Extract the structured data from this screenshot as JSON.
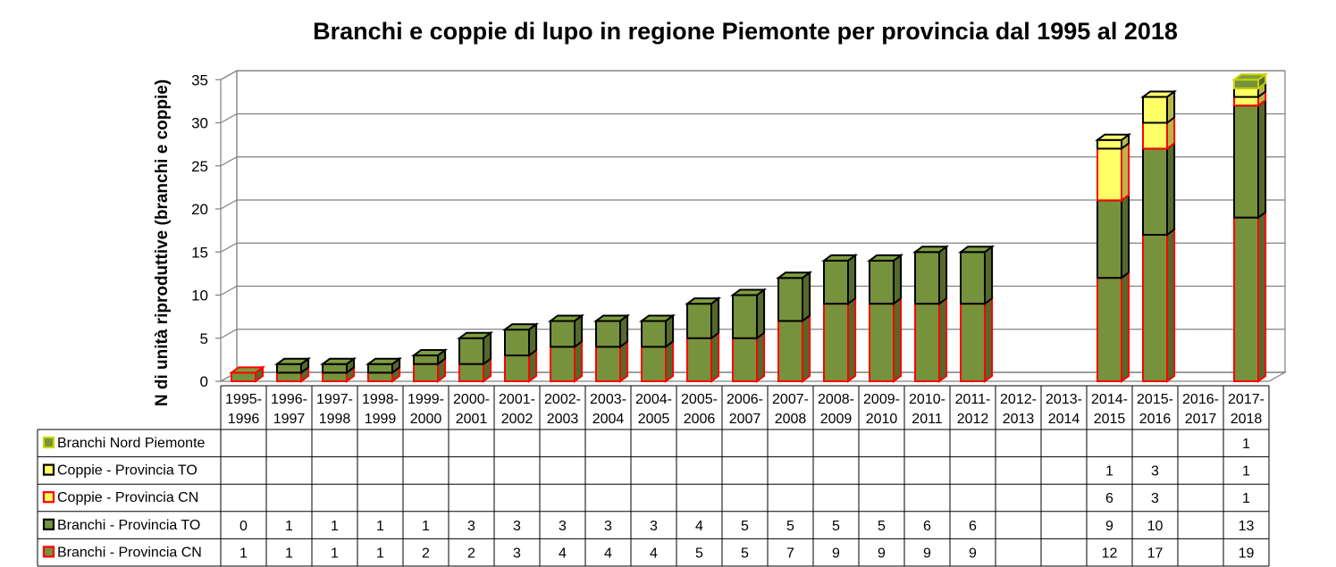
{
  "chart_data": {
    "type": "bar",
    "stacked": true,
    "three_d": true,
    "title": "Branchi e coppie di lupo in regione Piemonte per provincia dal 1995 al 2018",
    "ylabel": "N di unità riproduttive (branchi e coppie)",
    "ylim": [
      0,
      35
    ],
    "yticks": [
      "0",
      "5",
      "10",
      "15",
      "20",
      "25",
      "30",
      "35"
    ],
    "grid": true,
    "legend": "data-table-below",
    "categories": [
      [
        "1995-",
        "1996"
      ],
      [
        "1996-",
        "1997"
      ],
      [
        "1997-",
        "1998"
      ],
      [
        "1998-",
        "1999"
      ],
      [
        "1999-",
        "2000"
      ],
      [
        "2000-",
        "2001"
      ],
      [
        "2001-",
        "2002"
      ],
      [
        "2002-",
        "2003"
      ],
      [
        "2003-",
        "2004"
      ],
      [
        "2004-",
        "2005"
      ],
      [
        "2005-",
        "2006"
      ],
      [
        "2006-",
        "2007"
      ],
      [
        "2007-",
        "2008"
      ],
      [
        "2008-",
        "2009"
      ],
      [
        "2009-",
        "2010"
      ],
      [
        "2010-",
        "2011"
      ],
      [
        "2011-",
        "2012"
      ],
      [
        "2012-",
        "2013"
      ],
      [
        "2013-",
        "2014"
      ],
      [
        "2014-",
        "2015"
      ],
      [
        "2015-",
        "2016"
      ],
      [
        "2016-",
        "2017"
      ],
      [
        "2017-",
        "2018"
      ]
    ],
    "series": [
      {
        "name": "Branchi - Provincia CN",
        "fill": "#76923c",
        "stroke": "#ff0000",
        "values": [
          1,
          1,
          1,
          1,
          2,
          2,
          3,
          4,
          4,
          4,
          5,
          5,
          7,
          9,
          9,
          9,
          9,
          null,
          null,
          12,
          17,
          null,
          19
        ]
      },
      {
        "name": "Branchi - Provincia TO",
        "fill": "#76923c",
        "stroke": "#000000",
        "values": [
          0,
          1,
          1,
          1,
          1,
          3,
          3,
          3,
          3,
          3,
          4,
          5,
          5,
          5,
          5,
          6,
          6,
          null,
          null,
          9,
          10,
          null,
          13
        ]
      },
      {
        "name": "Coppie - Provincia CN",
        "fill": "#ffff66",
        "stroke": "#ff0000",
        "values": [
          null,
          null,
          null,
          null,
          null,
          null,
          null,
          null,
          null,
          null,
          null,
          null,
          null,
          null,
          null,
          null,
          null,
          null,
          null,
          6,
          3,
          null,
          1
        ]
      },
      {
        "name": "Coppie - Provincia TO",
        "fill": "#ffff66",
        "stroke": "#000000",
        "values": [
          null,
          null,
          null,
          null,
          null,
          null,
          null,
          null,
          null,
          null,
          null,
          null,
          null,
          null,
          null,
          null,
          null,
          null,
          null,
          1,
          3,
          null,
          1
        ]
      },
      {
        "name": "Branchi Nord Piemonte",
        "fill": "#76923c",
        "stroke": "#c8d400",
        "values": [
          null,
          null,
          null,
          null,
          null,
          null,
          null,
          null,
          null,
          null,
          null,
          null,
          null,
          null,
          null,
          null,
          null,
          null,
          null,
          null,
          null,
          null,
          1
        ]
      }
    ]
  }
}
